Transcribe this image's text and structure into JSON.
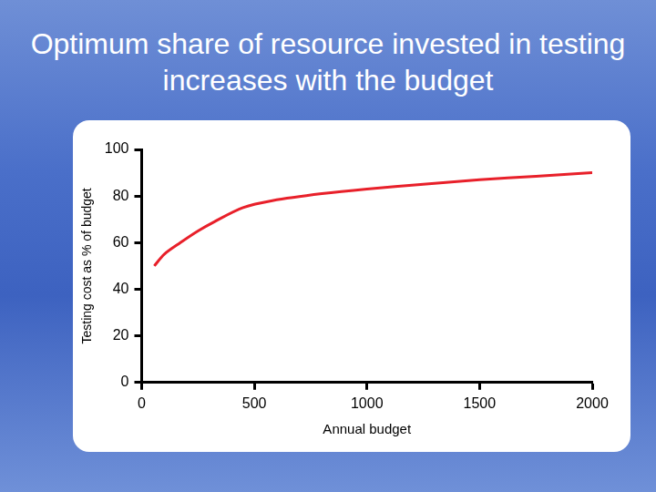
{
  "chart_data": {
    "type": "line",
    "title": "Optimum share of resource invested in testing increases with the budget",
    "x_label": "Annual budget",
    "y_label": "Testing cost as % of budget",
    "x": [
      56,
      100,
      172,
      250,
      323,
      450,
      580,
      800,
      1000,
      1250,
      1500,
      1750,
      2000
    ],
    "values": [
      50,
      55,
      60,
      65,
      69,
      75,
      78,
      81,
      83,
      85,
      87,
      88.5,
      90
    ],
    "color": "#e8202a",
    "xlim": [
      0,
      2000
    ],
    "xticks": [
      0,
      500,
      1000,
      1500,
      2000
    ],
    "ylim": [
      0,
      100
    ],
    "yticks": [
      0,
      20,
      40,
      60,
      80,
      100
    ],
    "grid": false
  }
}
